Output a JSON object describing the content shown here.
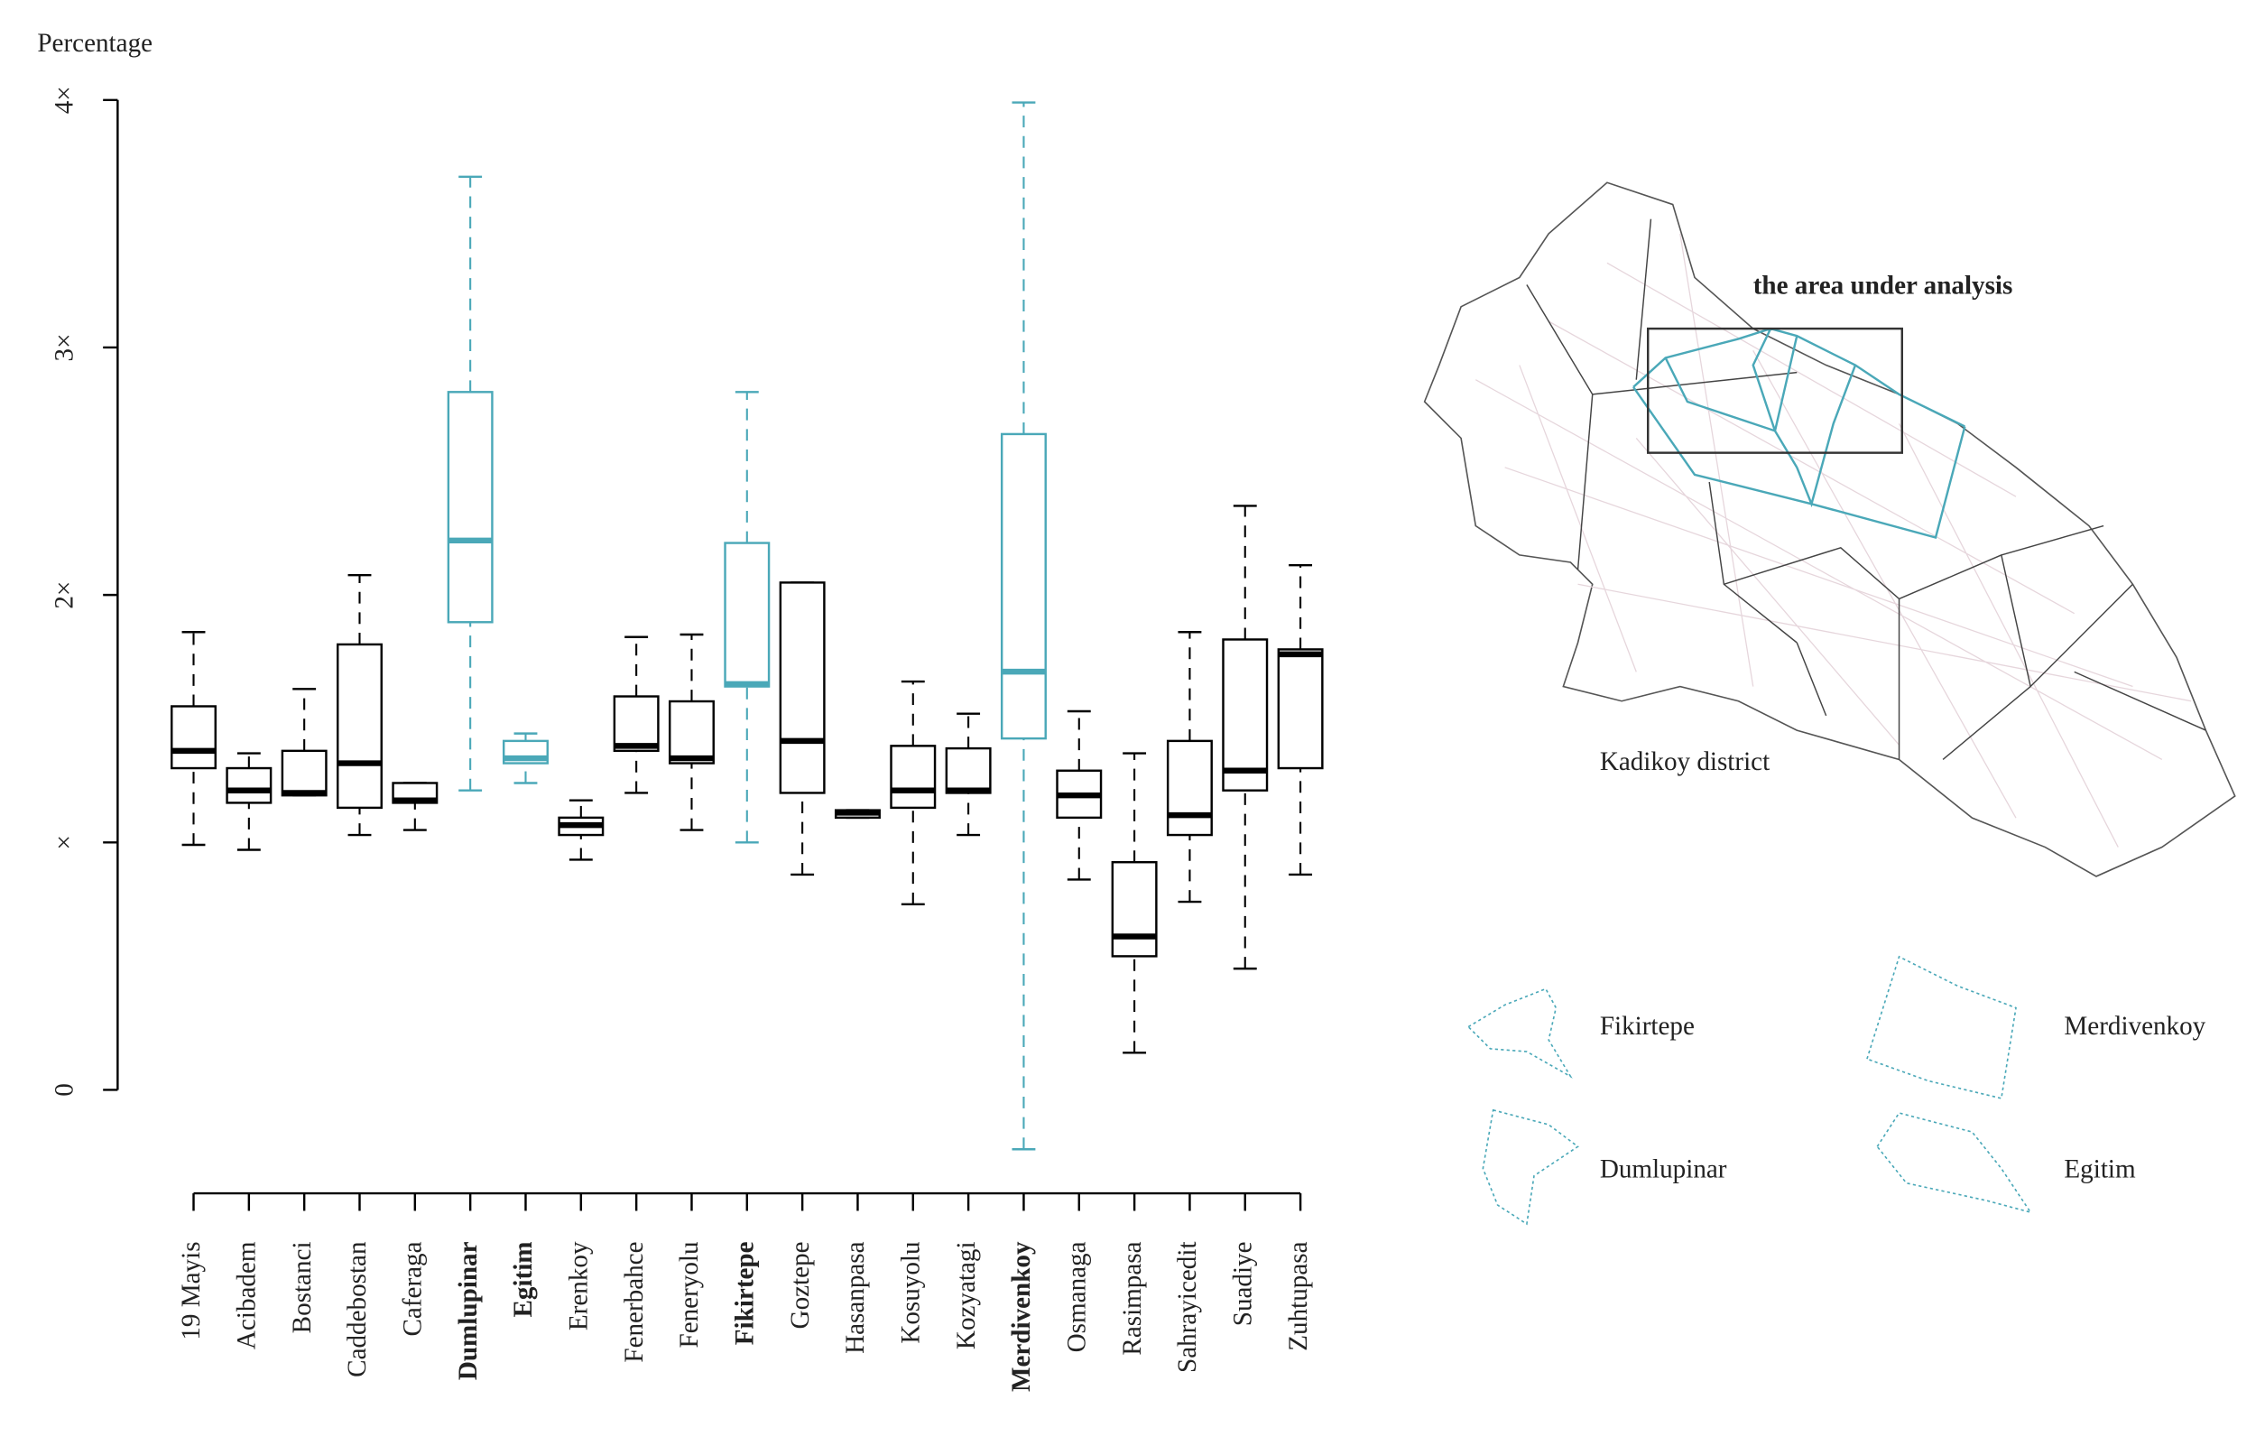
{
  "chart_data": {
    "type": "boxplot",
    "ylabel": "Percentage",
    "categories": [
      "19 Mayis",
      "Acibadem",
      "Bostanci",
      "Caddebostan",
      "Caferaga",
      "Dumlupinar",
      "Egitim",
      "Erenkoy",
      "Fenerbahce",
      "Feneryolu",
      "Fikirtepe",
      "Goztepe",
      "Hasanpasa",
      "Kosuyolu",
      "Kozyatagi",
      "Merdivenkoy",
      "Osmanaga",
      "Rasimpasa",
      "Sahrayicedit",
      "Suadiye",
      "Zuhtupasa"
    ],
    "colors": [
      "#000000",
      "#000000",
      "#000000",
      "#000000",
      "#000000",
      "#4aa8b8",
      "#4aa8b8",
      "#000000",
      "#000000",
      "#000000",
      "#4aa8b8",
      "#000000",
      "#000000",
      "#000000",
      "#000000",
      "#4aa8b8",
      "#000000",
      "#000000",
      "#000000",
      "#000000",
      "#000000"
    ],
    "whisker_low": [
      0.99,
      0.97,
      1.19,
      1.03,
      1.05,
      1.21,
      1.24,
      0.93,
      1.2,
      1.05,
      1.0,
      0.87,
      1.1,
      0.75,
      1.03,
      -0.24,
      0.85,
      0.15,
      0.76,
      0.49,
      0.87
    ],
    "q1": [
      1.3,
      1.16,
      1.19,
      1.14,
      1.16,
      1.89,
      1.32,
      1.03,
      1.37,
      1.32,
      1.63,
      1.2,
      1.1,
      1.14,
      1.2,
      1.42,
      1.1,
      0.54,
      1.03,
      1.21,
      1.3
    ],
    "median": [
      1.37,
      1.21,
      1.2,
      1.32,
      1.17,
      2.22,
      1.34,
      1.07,
      1.39,
      1.34,
      1.64,
      1.41,
      1.12,
      1.21,
      1.21,
      1.69,
      1.19,
      0.62,
      1.11,
      1.29,
      1.76
    ],
    "q3": [
      1.55,
      1.3,
      1.37,
      1.8,
      1.24,
      2.82,
      1.41,
      1.1,
      1.59,
      1.57,
      2.21,
      2.05,
      1.13,
      1.39,
      1.38,
      2.65,
      1.29,
      0.92,
      1.41,
      1.82,
      1.78
    ],
    "whisker_high": [
      1.85,
      1.36,
      1.62,
      2.08,
      1.24,
      3.69,
      1.44,
      1.17,
      1.83,
      1.84,
      2.82,
      2.05,
      1.13,
      1.65,
      1.52,
      3.99,
      1.53,
      1.36,
      1.85,
      2.36,
      2.12
    ],
    "ylim": [
      -0.3,
      4.05
    ],
    "yticks": [
      0,
      {
        "value": 1,
        "label": "×"
      },
      {
        "value": 2,
        "label": "2×"
      },
      {
        "value": 3,
        "label": "3×"
      },
      {
        "value": 4,
        "label": "4×"
      }
    ]
  },
  "map": {
    "area_label": "the area under analysis",
    "district_label": "Kadikoy district",
    "legend": [
      "Fikirtepe",
      "Merdivenkoy",
      "Dumlupinar",
      "Egitim"
    ]
  }
}
